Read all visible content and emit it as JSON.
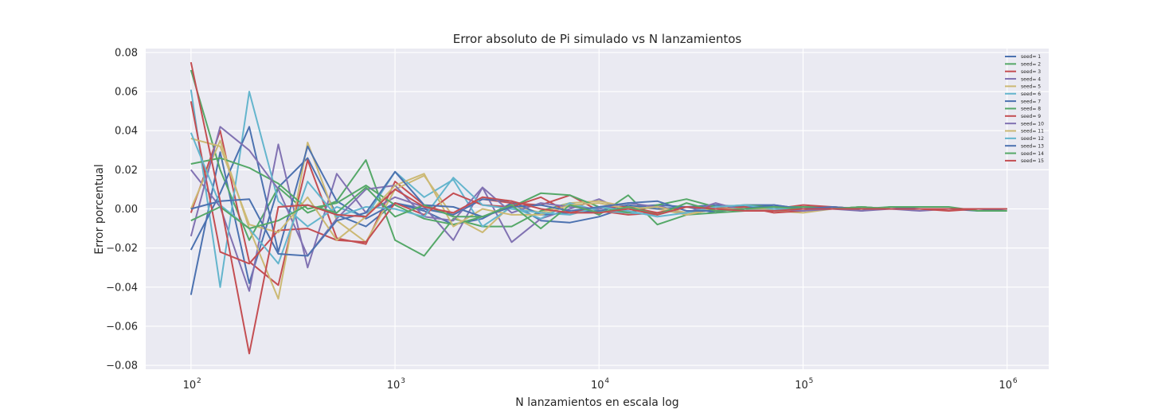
{
  "chart_data": {
    "type": "line",
    "title": "Error absoluto de Pi simulado vs N lanzamientos",
    "xlabel": "N lanzamientos en escala log",
    "ylabel": "Error porcentual",
    "x_scale": "log",
    "xlim": [
      60,
      1600000
    ],
    "ylim": [
      -0.082,
      0.082
    ],
    "grid": true,
    "legend_position": "top-right",
    "x_ticks": [
      {
        "value": 100,
        "base": "10",
        "exp": "2"
      },
      {
        "value": 1000,
        "base": "10",
        "exp": "3"
      },
      {
        "value": 10000,
        "base": "10",
        "exp": "4"
      },
      {
        "value": 100000,
        "base": "10",
        "exp": "5"
      },
      {
        "value": 1000000,
        "base": "10",
        "exp": "6"
      }
    ],
    "y_ticks": [
      {
        "value": 0.08,
        "label": "0.08"
      },
      {
        "value": 0.06,
        "label": "0.06"
      },
      {
        "value": 0.04,
        "label": "0.04"
      },
      {
        "value": 0.02,
        "label": "0.02"
      },
      {
        "value": 0.0,
        "label": "0.00"
      },
      {
        "value": -0.02,
        "label": "−0.02"
      },
      {
        "value": -0.04,
        "label": "−0.04"
      },
      {
        "value": -0.06,
        "label": "−0.06"
      },
      {
        "value": -0.08,
        "label": "−0.08"
      }
    ],
    "x": [
      100,
      139,
      193,
      268,
      373,
      518,
      720,
      1000,
      1389,
      1931,
      2683,
      3728,
      5179,
      7197,
      10000,
      13895,
      19307,
      26827,
      37276,
      51795,
      71969,
      100000,
      138950,
      193070,
      268270,
      372760,
      517950,
      719690,
      1000000
    ],
    "colors": [
      "#4C72B0",
      "#55A868",
      "#C44E52",
      "#8172B2",
      "#CCB974",
      "#64B5CD"
    ],
    "series": [
      {
        "name": "seed= 1",
        "color": "#4C72B0",
        "values": [
          -0.044,
          0.029,
          -0.038,
          0.011,
          0.026,
          -0.003,
          -0.009,
          0.003,
          -0.001,
          -0.008,
          -0.005,
          0.003,
          -0.006,
          -0.007,
          -0.004,
          0.001,
          0.002,
          0.001,
          -0.002,
          0.002,
          0.002,
          0.0,
          0.001,
          -0.001,
          0.001,
          0.0,
          0.0,
          -0.001,
          0.0
        ]
      },
      {
        "name": "seed= 2",
        "color": "#55A868",
        "values": [
          0.071,
          0.02,
          -0.016,
          0.011,
          -0.002,
          0.004,
          0.025,
          -0.016,
          -0.024,
          -0.005,
          -0.009,
          -0.009,
          -0.001,
          0.003,
          -0.003,
          0.007,
          -0.008,
          -0.003,
          -0.002,
          -0.001,
          0.0,
          0.001,
          0.001,
          0.0,
          0.001,
          0.001,
          0.001,
          -0.001,
          -0.001
        ]
      },
      {
        "name": "seed= 3",
        "color": "#C44E52",
        "values": [
          -0.002,
          0.04,
          -0.027,
          -0.039,
          0.025,
          -0.015,
          -0.018,
          0.014,
          0.002,
          -0.003,
          0.005,
          0.003,
          0.002,
          0.007,
          -0.001,
          -0.003,
          -0.002,
          0.001,
          0.001,
          -0.001,
          0.0,
          0.002,
          0.001,
          0.0,
          0.0,
          0.0,
          0.0,
          0.0,
          0.0
        ]
      },
      {
        "name": "seed= 4",
        "color": "#8172B2",
        "values": [
          0.02,
          0.001,
          -0.042,
          0.033,
          -0.03,
          0.018,
          -0.002,
          0.006,
          0.001,
          -0.016,
          0.011,
          -0.017,
          -0.005,
          0.0,
          0.005,
          -0.002,
          0.002,
          -0.003,
          0.0,
          0.001,
          0.0,
          0.0,
          0.0,
          -0.001,
          0.0,
          -0.001,
          0.0,
          0.0,
          0.0
        ]
      },
      {
        "name": "seed= 5",
        "color": "#CCB974",
        "values": [
          0.0,
          0.035,
          -0.01,
          -0.046,
          0.034,
          -0.006,
          -0.017,
          0.01,
          0.017,
          -0.004,
          -0.012,
          0.002,
          -0.002,
          0.003,
          0.004,
          0.001,
          0.0,
          -0.003,
          0.0,
          0.001,
          -0.001,
          -0.002,
          0.0,
          0.001,
          0.0,
          0.0,
          0.0,
          0.0,
          0.0
        ]
      },
      {
        "name": "seed= 6",
        "color": "#64B5CD",
        "values": [
          0.061,
          -0.04,
          0.06,
          0.004,
          -0.009,
          0.001,
          -0.004,
          0.019,
          0.006,
          0.015,
          -0.009,
          0.001,
          -0.005,
          0.003,
          -0.001,
          -0.002,
          -0.003,
          0.001,
          0.0,
          0.0,
          -0.001,
          0.0,
          0.0,
          0.0,
          0.0,
          0.0,
          0.0,
          0.0,
          0.0
        ]
      },
      {
        "name": "seed= 7",
        "color": "#4C72B0",
        "values": [
          -0.021,
          0.008,
          0.042,
          -0.022,
          0.032,
          0.004,
          -0.005,
          0.003,
          0.0,
          -0.003,
          0.005,
          0.004,
          -0.003,
          -0.002,
          -0.001,
          0.002,
          0.0,
          0.001,
          0.002,
          0.001,
          0.0,
          0.0,
          0.0,
          0.001,
          0.0,
          0.0,
          0.0,
          0.0,
          0.0
        ]
      },
      {
        "name": "seed= 8",
        "color": "#55A868",
        "values": [
          0.023,
          0.026,
          0.021,
          0.013,
          0.0,
          0.003,
          0.012,
          0.002,
          -0.005,
          -0.008,
          -0.004,
          0.001,
          0.008,
          0.007,
          0.001,
          -0.002,
          0.002,
          0.005,
          0.001,
          0.002,
          0.001,
          0.001,
          0.0,
          0.001,
          0.0,
          0.0,
          0.0,
          0.0,
          0.0
        ]
      },
      {
        "name": "seed= 9",
        "color": "#C44E52",
        "values": [
          0.055,
          -0.022,
          -0.028,
          -0.011,
          -0.01,
          -0.016,
          -0.017,
          0.003,
          -0.003,
          0.008,
          0.002,
          0.001,
          0.006,
          -0.002,
          0.001,
          0.001,
          -0.002,
          0.001,
          0.0,
          0.001,
          -0.002,
          -0.001,
          0.001,
          0.0,
          0.0,
          0.0,
          -0.001,
          0.0,
          0.0
        ]
      },
      {
        "name": "seed= 10",
        "color": "#8172B2",
        "values": [
          -0.014,
          0.042,
          0.03,
          0.01,
          -0.024,
          -0.005,
          0.01,
          0.012,
          -0.004,
          -0.006,
          0.011,
          -0.002,
          0.003,
          0.001,
          0.0,
          0.003,
          0.001,
          -0.002,
          0.003,
          -0.001,
          0.0,
          -0.001,
          0.0,
          0.0,
          0.0,
          0.0,
          0.0,
          0.0,
          0.0
        ]
      },
      {
        "name": "seed= 11",
        "color": "#CCB974",
        "values": [
          0.036,
          0.032,
          -0.008,
          -0.012,
          0.006,
          -0.016,
          -0.004,
          0.012,
          0.018,
          -0.009,
          0.0,
          -0.003,
          -0.003,
          0.002,
          0.003,
          0.0,
          0.001,
          -0.002,
          0.0,
          0.0,
          0.0,
          0.0,
          0.0,
          0.001,
          0.0,
          0.0,
          0.0,
          0.0,
          0.0
        ]
      },
      {
        "name": "seed= 12",
        "color": "#64B5CD",
        "values": [
          0.039,
          0.002,
          -0.01,
          -0.028,
          0.014,
          -0.004,
          0.001,
          0.0,
          -0.004,
          0.016,
          0.002,
          0.0,
          -0.002,
          -0.003,
          0.001,
          -0.001,
          -0.004,
          -0.002,
          0.001,
          0.002,
          0.0,
          0.0,
          0.0,
          0.0,
          0.0,
          0.0,
          0.0,
          0.0,
          0.0
        ]
      },
      {
        "name": "seed= 13",
        "color": "#4C72B0",
        "values": [
          0.0,
          0.004,
          0.005,
          -0.023,
          -0.024,
          -0.006,
          -0.002,
          0.019,
          0.002,
          0.001,
          -0.004,
          0.001,
          0.002,
          -0.001,
          0.001,
          0.003,
          0.004,
          -0.001,
          -0.001,
          0.0,
          0.002,
          0.0,
          0.001,
          0.0,
          0.0,
          0.0,
          0.0,
          0.0,
          0.0
        ]
      },
      {
        "name": "seed= 14",
        "color": "#55A868",
        "values": [
          -0.006,
          0.001,
          -0.01,
          -0.006,
          0.002,
          -0.002,
          0.011,
          -0.004,
          0.002,
          -0.004,
          -0.004,
          0.002,
          -0.01,
          0.002,
          -0.002,
          0.001,
          -0.003,
          0.003,
          -0.001,
          0.0,
          0.001,
          0.0,
          0.0,
          0.001,
          0.0,
          0.0,
          0.0,
          0.0,
          0.0
        ]
      },
      {
        "name": "seed= 15",
        "color": "#C44E52",
        "values": [
          0.075,
          0.004,
          -0.074,
          0.001,
          0.002,
          -0.003,
          -0.004,
          0.01,
          0.001,
          -0.002,
          0.006,
          0.004,
          0.0,
          -0.002,
          -0.002,
          0.0,
          -0.003,
          0.001,
          0.0,
          -0.001,
          -0.001,
          0.0,
          0.0,
          0.0,
          0.0,
          0.0,
          0.0,
          0.0,
          0.0
        ]
      }
    ]
  }
}
